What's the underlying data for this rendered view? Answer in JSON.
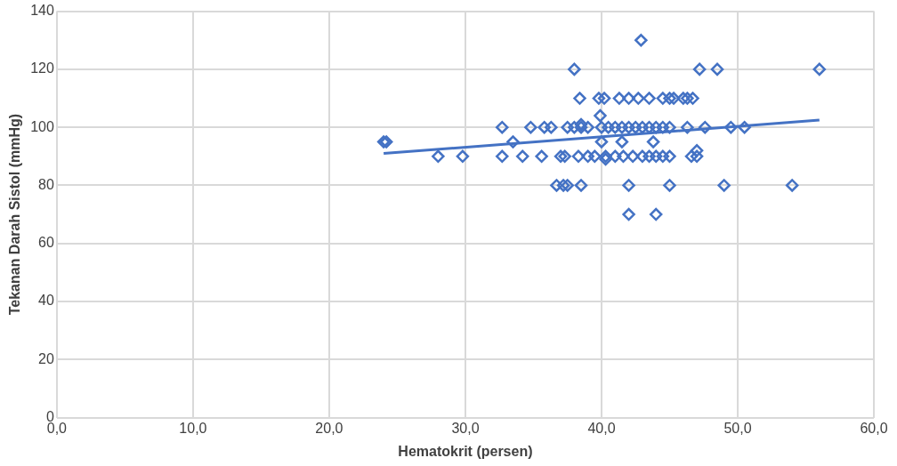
{
  "chart_data": {
    "type": "scatter",
    "xlabel": "Hematokrit (persen)",
    "ylabel": "Tekanan Darah Sistol (mmHg)",
    "xlim": [
      0,
      60
    ],
    "xticks": [
      {
        "value": 0,
        "label": "0,0"
      },
      {
        "value": 10,
        "label": "10,0"
      },
      {
        "value": 20,
        "label": "20,0"
      },
      {
        "value": 30,
        "label": "30,0"
      },
      {
        "value": 40,
        "label": "40,0"
      },
      {
        "value": 50,
        "label": "50,0"
      },
      {
        "value": 60,
        "label": "60,0"
      }
    ],
    "ylim": [
      0,
      140
    ],
    "yticks": [
      0,
      20,
      40,
      60,
      80,
      100,
      120,
      140
    ],
    "grid": true,
    "legend": false,
    "marker": "diamond",
    "series": [
      {
        "color": "#4472c4",
        "x": [
          24.0,
          24.2,
          28.0,
          29.8,
          32.7,
          34.2,
          35.6,
          37.0,
          37.3,
          38.3,
          39.0,
          39.5,
          40.3,
          41.0,
          41.6,
          42.3,
          43.0,
          43.5,
          44.0,
          44.5,
          45.0,
          46.6,
          47.0,
          32.7,
          34.8,
          35.8,
          36.3,
          37.5,
          38.0,
          38.5,
          39.0,
          40.0,
          40.5,
          41.0,
          41.5,
          42.0,
          42.5,
          43.0,
          43.5,
          44.0,
          44.5,
          45.0,
          46.3,
          47.6,
          49.5,
          50.5,
          33.5,
          40.0,
          41.5,
          43.8,
          38.4,
          39.8,
          40.2,
          41.3,
          42.0,
          42.7,
          43.5,
          44.5,
          45.0,
          45.3,
          46.0,
          46.3,
          46.7,
          38.0,
          47.2,
          48.5,
          56.0,
          42.9,
          36.7,
          37.2,
          37.5,
          38.5,
          42.0,
          45.0,
          49.0,
          54.0,
          42.0,
          44.0,
          39.9,
          38.5,
          40.3,
          47.0
        ],
        "values": [
          95,
          95,
          90,
          90,
          90,
          90,
          90,
          90,
          90,
          90,
          90,
          90,
          90,
          90,
          90,
          90,
          90,
          90,
          90,
          90,
          90,
          90,
          90,
          100,
          100,
          100,
          100,
          100,
          100,
          100,
          100,
          100,
          100,
          100,
          100,
          100,
          100,
          100,
          100,
          100,
          100,
          100,
          100,
          100,
          100,
          100,
          95,
          95,
          95,
          95,
          110,
          110,
          110,
          110,
          110,
          110,
          110,
          110,
          110,
          110,
          110,
          110,
          110,
          120,
          120,
          120,
          120,
          130,
          80,
          80,
          80,
          80,
          80,
          80,
          80,
          80,
          70,
          70,
          104,
          101,
          89,
          92
        ]
      },
      {
        "type": "line",
        "color": "#4472c4",
        "x": [
          24.0,
          56.0
        ],
        "values": [
          91,
          102.5
        ],
        "marker": "none"
      }
    ]
  }
}
